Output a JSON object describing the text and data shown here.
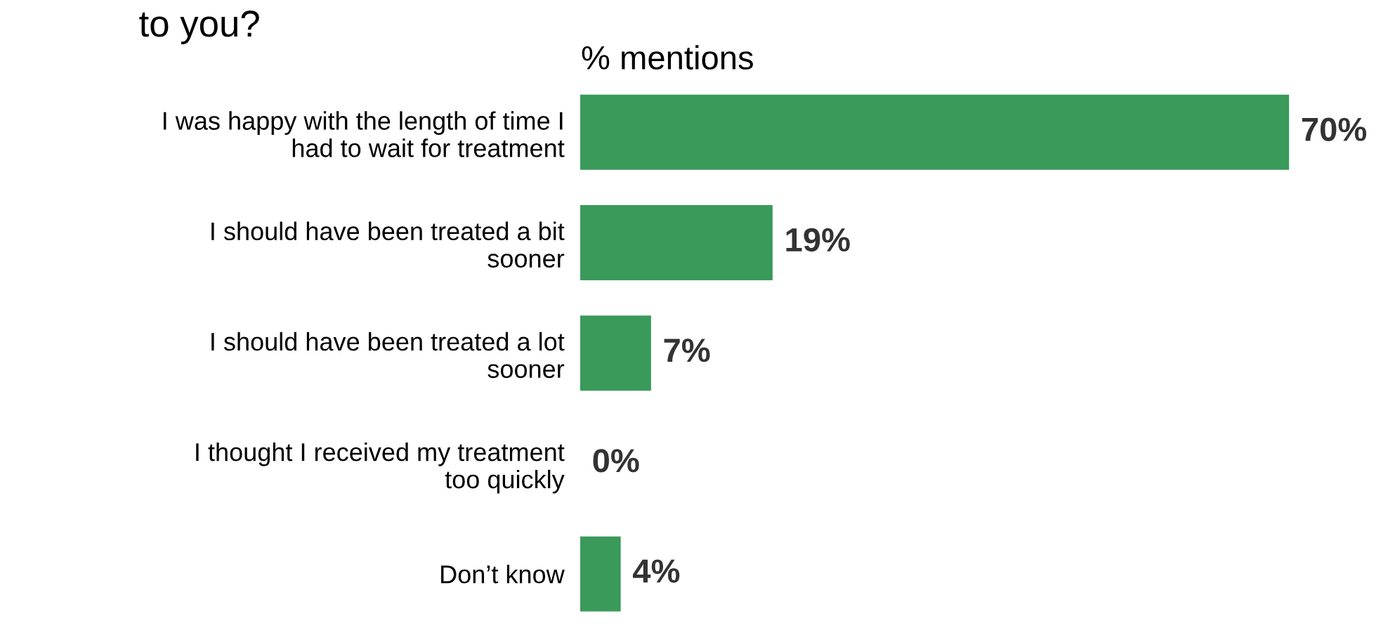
{
  "chart_data": {
    "type": "bar",
    "orientation": "horizontal",
    "title": "to you?",
    "xlabel": "% mentions",
    "categories": [
      "I was happy with the length of time I\nhad to wait for treatment",
      "I should have been treated a bit\nsooner",
      "I should have been treated a lot\nsooner",
      "I thought I received my treatment\ntoo quickly",
      "Don’t know"
    ],
    "values": [
      70,
      19,
      7,
      0,
      4
    ],
    "value_labels": [
      "70%",
      "19%",
      "7%",
      "0%",
      "4%"
    ],
    "color": "#3a9a5a",
    "grid": false,
    "legend": false
  }
}
